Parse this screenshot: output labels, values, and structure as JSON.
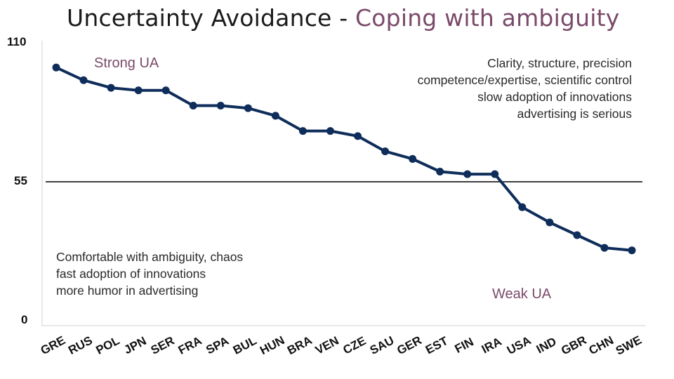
{
  "title": {
    "main": "Uncertainty Avoidance - ",
    "accent": "Coping with ambiguity"
  },
  "colors": {
    "line": "#0f2d5a",
    "accent": "#7a4a6a",
    "threshold": "#000000"
  },
  "annotations": {
    "strong": "Strong UA",
    "weak": "Weak UA",
    "right_lines": [
      "Clarity, structure, precision",
      "competence/expertise, scientific control",
      "slow adoption of innovations",
      "advertising is serious"
    ],
    "left_lines": [
      "Comfortable with ambiguity, chaos",
      "fast adoption of innovations",
      "more humor in advertising"
    ]
  },
  "chart_data": {
    "type": "line",
    "title": "Uncertainty Avoidance - Coping with ambiguity",
    "categories": [
      "GRE",
      "RUS",
      "POL",
      "JPN",
      "SER",
      "FRA",
      "SPA",
      "BUL",
      "HUN",
      "BRA",
      "VEN",
      "CZE",
      "SAU",
      "GER",
      "EST",
      "FIN",
      "IRA",
      "USA",
      "IND",
      "GBR",
      "CHN",
      "SWE"
    ],
    "series": [
      {
        "name": "Uncertainty Avoidance",
        "values": [
          100,
          95,
          92,
          91,
          91,
          85,
          85,
          84,
          81,
          75,
          75,
          73,
          67,
          64,
          59,
          58,
          58,
          45,
          39,
          34,
          29,
          28
        ]
      }
    ],
    "threshold": 55,
    "yticks": [
      "0",
      "55",
      "110"
    ],
    "ylim": [
      0,
      110
    ],
    "xlabel": "",
    "ylabel": ""
  }
}
